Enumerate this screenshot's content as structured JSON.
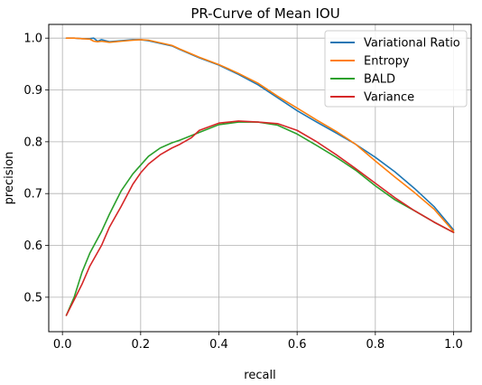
{
  "chart_data": {
    "type": "line",
    "title": "PR-Curve of Mean IOU",
    "xlabel": "recall",
    "ylabel": "precision",
    "xlim": [
      -0.035,
      1.045
    ],
    "ylim": [
      0.4335,
      1.0265
    ],
    "xticks": [
      0.0,
      0.2,
      0.4,
      0.6,
      0.8,
      1.0
    ],
    "xtick_labels": [
      "0.0",
      "0.2",
      "0.4",
      "0.6",
      "0.8",
      "1.0"
    ],
    "yticks": [
      0.5,
      0.6,
      0.7,
      0.8,
      0.9,
      1.0
    ],
    "ytick_labels": [
      "0.5",
      "0.6",
      "0.7",
      "0.8",
      "0.9",
      "1.0"
    ],
    "grid": true,
    "legend_position": "top-right",
    "series": [
      {
        "name": "Variational Ratio",
        "color": "#1f77b4",
        "x": [
          0.01,
          0.03,
          0.05,
          0.07,
          0.08,
          0.09,
          0.1,
          0.11,
          0.12,
          0.15,
          0.18,
          0.2,
          0.22,
          0.25,
          0.28,
          0.3,
          0.35,
          0.4,
          0.45,
          0.5,
          0.55,
          0.6,
          0.65,
          0.7,
          0.75,
          0.8,
          0.85,
          0.9,
          0.95,
          1.0
        ],
        "y": [
          1.0,
          1.0,
          0.999,
          0.999,
          1.0,
          0.994,
          0.997,
          0.995,
          0.993,
          0.995,
          0.997,
          0.997,
          0.995,
          0.99,
          0.985,
          0.978,
          0.962,
          0.948,
          0.93,
          0.91,
          0.885,
          0.86,
          0.838,
          0.817,
          0.795,
          0.77,
          0.742,
          0.71,
          0.675,
          0.63
        ]
      },
      {
        "name": "Entropy",
        "color": "#ff7f0e",
        "x": [
          0.01,
          0.03,
          0.05,
          0.07,
          0.08,
          0.09,
          0.1,
          0.11,
          0.12,
          0.15,
          0.18,
          0.2,
          0.22,
          0.25,
          0.28,
          0.3,
          0.35,
          0.4,
          0.45,
          0.5,
          0.55,
          0.6,
          0.65,
          0.7,
          0.75,
          0.8,
          0.85,
          0.9,
          0.95,
          1.0
        ],
        "y": [
          1.0,
          1.0,
          0.999,
          0.998,
          0.994,
          0.993,
          0.994,
          0.993,
          0.992,
          0.994,
          0.996,
          0.997,
          0.996,
          0.991,
          0.986,
          0.979,
          0.963,
          0.949,
          0.932,
          0.913,
          0.888,
          0.865,
          0.842,
          0.82,
          0.795,
          0.763,
          0.732,
          0.702,
          0.67,
          0.627
        ]
      },
      {
        "name": "BALD",
        "color": "#2ca02c",
        "x": [
          0.01,
          0.03,
          0.05,
          0.07,
          0.1,
          0.12,
          0.15,
          0.18,
          0.2,
          0.22,
          0.25,
          0.28,
          0.3,
          0.35,
          0.4,
          0.45,
          0.5,
          0.55,
          0.6,
          0.65,
          0.7,
          0.75,
          0.8,
          0.85,
          0.9,
          0.95,
          1.0
        ],
        "y": [
          0.465,
          0.5,
          0.548,
          0.585,
          0.627,
          0.66,
          0.705,
          0.738,
          0.755,
          0.772,
          0.788,
          0.798,
          0.803,
          0.818,
          0.833,
          0.838,
          0.838,
          0.832,
          0.815,
          0.793,
          0.77,
          0.745,
          0.715,
          0.688,
          0.667,
          0.645,
          0.625
        ]
      },
      {
        "name": "Variance",
        "color": "#d62728",
        "x": [
          0.01,
          0.03,
          0.05,
          0.07,
          0.1,
          0.12,
          0.15,
          0.18,
          0.2,
          0.22,
          0.25,
          0.28,
          0.3,
          0.33,
          0.35,
          0.4,
          0.45,
          0.5,
          0.55,
          0.6,
          0.65,
          0.7,
          0.75,
          0.8,
          0.85,
          0.9,
          0.95,
          1.0
        ],
        "y": [
          0.465,
          0.495,
          0.525,
          0.56,
          0.6,
          0.635,
          0.675,
          0.718,
          0.74,
          0.757,
          0.775,
          0.788,
          0.795,
          0.808,
          0.822,
          0.836,
          0.84,
          0.838,
          0.835,
          0.822,
          0.8,
          0.775,
          0.748,
          0.72,
          0.692,
          0.667,
          0.645,
          0.625
        ]
      }
    ]
  }
}
